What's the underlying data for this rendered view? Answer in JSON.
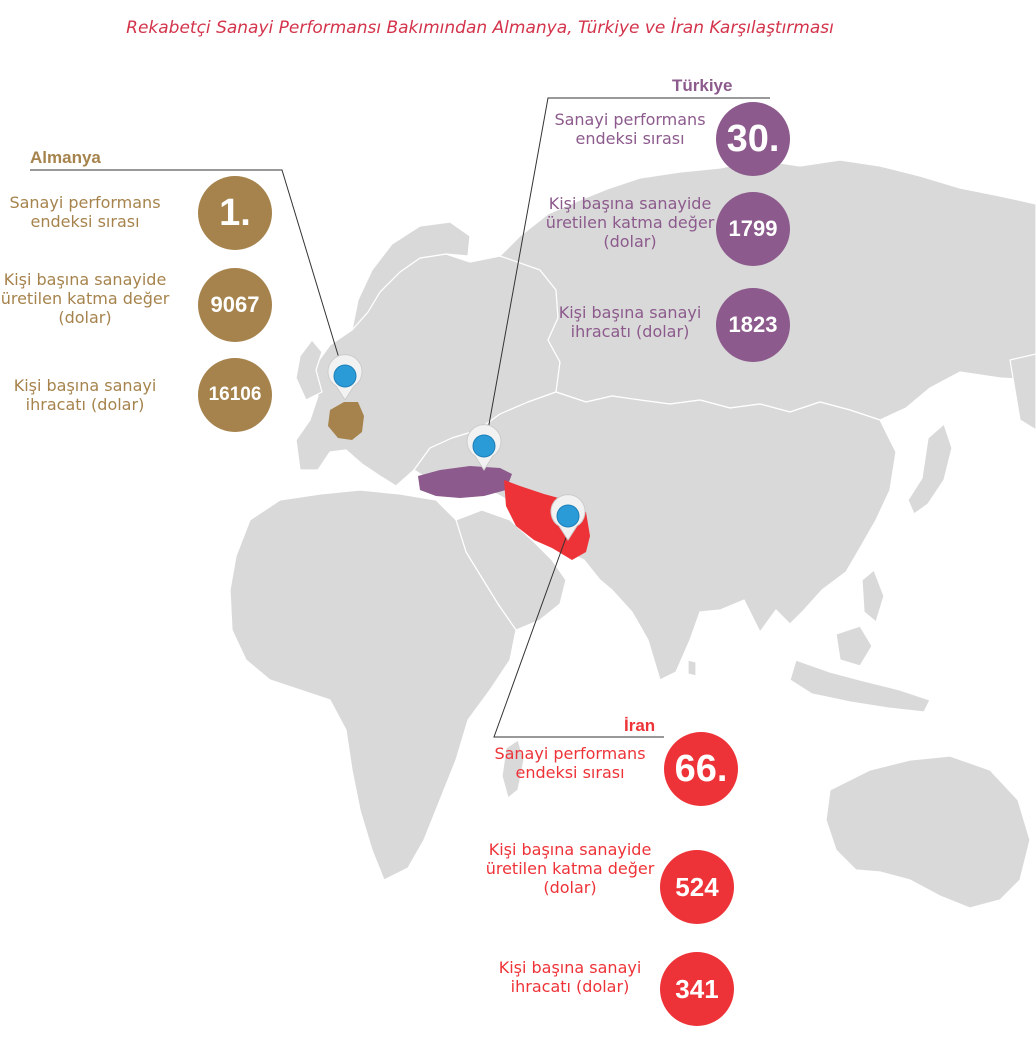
{
  "title": "Rekabetçi Sanayi Performansı Bakımından Almanya, Türkiye ve İran Karşılaştırması",
  "colors": {
    "almanya": "#a6834c",
    "turkiye": "#8c5a8c",
    "iran": "#ee3338",
    "land": "#d9d9d9",
    "pin": "#2b9bd8"
  },
  "almanya": {
    "name": "Almanya",
    "stats": [
      {
        "label": "Sanayi performans endeksi sırası",
        "value": "1."
      },
      {
        "label": "Kişi başına sanayide üretilen katma değer (dolar)",
        "value": "9067"
      },
      {
        "label": "Kişi başına sanayi ihracatı (dolar)",
        "value": "16106"
      }
    ]
  },
  "turkiye": {
    "name": "Türkiye",
    "stats": [
      {
        "label": "Sanayi performans endeksi sırası",
        "value": "30."
      },
      {
        "label": "Kişi başına sanayide üretilen katma değer (dolar)",
        "value": "1799"
      },
      {
        "label": "Kişi başına sanayi ihracatı (dolar)",
        "value": "1823"
      }
    ]
  },
  "iran": {
    "name": "İran",
    "stats": [
      {
        "label": "Sanayi performans endeksi sırası",
        "value": "66."
      },
      {
        "label": "Kişi başına sanayide üretilen katma değer (dolar)",
        "value": "524"
      },
      {
        "label": "Kişi başına sanayi ihracatı (dolar)",
        "value": "341"
      }
    ]
  }
}
